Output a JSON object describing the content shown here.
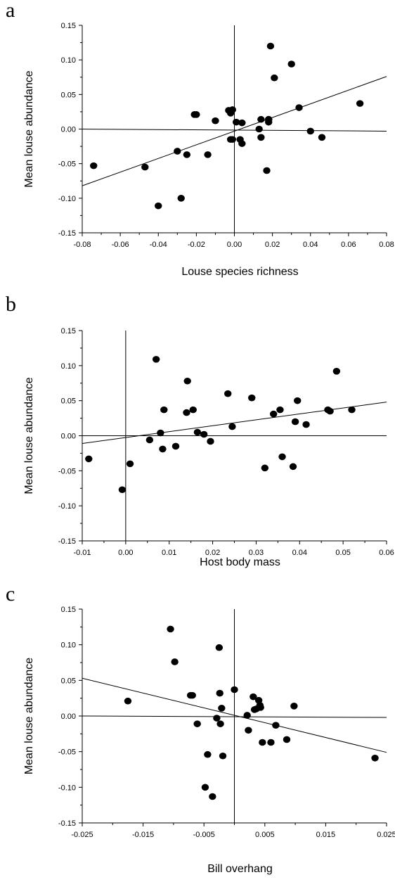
{
  "chart_data": [
    {
      "type": "scatter",
      "panel_letter": "a",
      "xlabel": "Louse species richness",
      "ylabel": "Mean louse abundance",
      "xlim": [
        -0.08,
        0.08
      ],
      "ylim": [
        -0.15,
        0.15
      ],
      "xticks": [
        -0.08,
        -0.06,
        -0.04,
        -0.02,
        0.0,
        0.02,
        0.04,
        0.06,
        0.08
      ],
      "xtick_labels": [
        "-0.08",
        "-0.06",
        "-0.04",
        "-0.02",
        "0.00",
        "0.02",
        "0.04",
        "0.06",
        "0.08"
      ],
      "yticks": [
        -0.15,
        -0.1,
        -0.05,
        0.0,
        0.05,
        0.1,
        0.15
      ],
      "ytick_labels": [
        "-0.15",
        "-0.10",
        "-0.05",
        "0.00",
        "0.05",
        "0.10",
        "0.15"
      ],
      "x": [
        -0.074,
        -0.047,
        -0.04,
        -0.03,
        -0.028,
        -0.025,
        -0.021,
        -0.02,
        -0.014,
        -0.01,
        -0.003,
        -0.002,
        -0.002,
        -0.001,
        -0.001,
        0.001,
        0.003,
        0.004,
        0.004,
        0.013,
        0.014,
        0.014,
        0.017,
        0.018,
        0.018,
        0.018,
        0.019,
        0.021,
        0.03,
        0.034,
        0.04,
        0.046,
        0.066
      ],
      "y": [
        -0.053,
        -0.055,
        -0.111,
        -0.032,
        -0.1,
        -0.037,
        0.021,
        0.021,
        -0.037,
        0.012,
        0.027,
        -0.015,
        0.023,
        0.028,
        -0.015,
        0.01,
        -0.015,
        0.009,
        -0.021,
        0.0,
        0.014,
        -0.012,
        -0.06,
        0.01,
        0.014,
        0.014,
        0.12,
        0.074,
        0.094,
        0.031,
        -0.003,
        -0.012,
        0.037
      ],
      "fit_line": {
        "x": [
          -0.08,
          0.08
        ],
        "y": [
          -0.082,
          0.076
        ]
      },
      "reference_line": {
        "x": [
          -0.08,
          0.08
        ],
        "y": [
          0.0,
          -0.003
        ]
      }
    },
    {
      "type": "scatter",
      "panel_letter": "b",
      "xlabel": "Host body mass",
      "ylabel": "Mean louse abundance",
      "xlim": [
        -0.01,
        0.06
      ],
      "ylim": [
        -0.15,
        0.15
      ],
      "xticks": [
        -0.01,
        0.0,
        0.01,
        0.02,
        0.03,
        0.04,
        0.05,
        0.06
      ],
      "xtick_labels": [
        "-0.01",
        "0.00",
        "0.01",
        "0.02",
        "0.03",
        "0.04",
        "0.05",
        "0.06"
      ],
      "yticks": [
        -0.15,
        -0.1,
        -0.05,
        0.0,
        0.05,
        0.1,
        0.15
      ],
      "ytick_labels": [
        "-0.15",
        "-0.10",
        "-0.05",
        "0.00",
        "0.05",
        "0.10",
        "0.15"
      ],
      "x": [
        -0.0085,
        -0.0008,
        0.001,
        0.0055,
        0.007,
        0.008,
        0.0085,
        0.0088,
        0.0115,
        0.014,
        0.0142,
        0.0155,
        0.0165,
        0.018,
        0.0195,
        0.0235,
        0.0245,
        0.029,
        0.032,
        0.034,
        0.0355,
        0.036,
        0.0385,
        0.039,
        0.0395,
        0.0415,
        0.0465,
        0.047,
        0.0485,
        0.052
      ],
      "y": [
        -0.033,
        -0.077,
        -0.04,
        -0.006,
        0.109,
        0.004,
        -0.019,
        0.037,
        -0.015,
        0.033,
        0.078,
        0.037,
        0.005,
        0.002,
        -0.008,
        0.06,
        0.013,
        0.054,
        -0.046,
        0.031,
        0.037,
        -0.03,
        -0.044,
        0.02,
        0.05,
        0.016,
        0.037,
        0.035,
        0.092,
        0.037
      ],
      "fit_line": {
        "x": [
          -0.01,
          0.06
        ],
        "y": [
          -0.011,
          0.048
        ]
      },
      "reference_line": {
        "x": [
          -0.01,
          0.06
        ],
        "y": [
          0.0,
          0.0
        ]
      }
    },
    {
      "type": "scatter",
      "panel_letter": "c",
      "xlabel": "Bill overhang",
      "ylabel": "Mean louse abundance",
      "xlim": [
        -0.025,
        0.025
      ],
      "ylim": [
        -0.15,
        0.15
      ],
      "xticks": [
        -0.025,
        -0.015,
        -0.005,
        0.005,
        0.015,
        0.025
      ],
      "xtick_labels": [
        "-0.025",
        "-0.015",
        "-0.005",
        "0.005",
        "0.015",
        "0.025"
      ],
      "yticks": [
        -0.15,
        -0.1,
        -0.05,
        0.0,
        0.05,
        0.1,
        0.15
      ],
      "ytick_labels": [
        "-0.15",
        "-0.10",
        "-0.05",
        "0.00",
        "0.05",
        "0.10",
        "0.15"
      ],
      "x": [
        -0.0175,
        -0.0105,
        -0.0098,
        -0.0072,
        -0.0069,
        -0.0061,
        -0.0048,
        -0.0044,
        -0.0036,
        -0.0029,
        -0.0025,
        -0.0024,
        -0.0023,
        -0.0021,
        -0.0019,
        0.0,
        0.0021,
        0.0023,
        0.0031,
        0.0033,
        0.0036,
        0.004,
        0.0042,
        0.0043,
        0.0046,
        0.006,
        0.0068,
        0.0086,
        0.0098,
        0.0231
      ],
      "y": [
        0.021,
        0.122,
        0.076,
        0.029,
        0.029,
        -0.011,
        -0.1,
        -0.054,
        -0.113,
        -0.003,
        0.096,
        0.032,
        -0.011,
        0.011,
        -0.056,
        0.037,
        0.001,
        -0.02,
        0.027,
        0.009,
        0.01,
        0.022,
        0.015,
        0.012,
        -0.037,
        -0.037,
        -0.013,
        -0.033,
        0.014,
        -0.059
      ],
      "fit_line": {
        "x": [
          -0.025,
          0.025
        ],
        "y": [
          0.053,
          -0.051
        ]
      },
      "reference_line": {
        "x": [
          -0.025,
          0.025
        ],
        "y": [
          0.0,
          -0.002
        ]
      }
    }
  ]
}
